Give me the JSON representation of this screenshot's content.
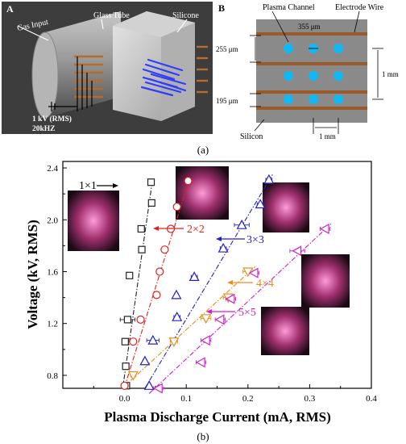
{
  "panel_a": {
    "letter": "A",
    "label_gas_input": "Gas Input",
    "label_glass_tube": "Glass Tube",
    "label_silicone": "Silicone",
    "label_voltage": "1 kV (RMS)",
    "label_freq": "20kHZ"
  },
  "panel_b": {
    "letter": "B",
    "label_plasma_channel": "Plasma Channel",
    "label_electrode_wire": "Electrode Wire",
    "dim_355": "355 μm",
    "dim_255": "255 μm",
    "dim_195": "195 μm",
    "dim_1mm_right": "1 mm",
    "dim_1mm_bottom": "1 mm",
    "label_silicon": "Silicon"
  },
  "caption_a": "(a)",
  "caption_b": "(b)",
  "colors": {
    "s1x1": "#222222",
    "s2x2": "#e0201c",
    "s3x3": "#2222c8",
    "s4x4": "#f08a1a",
    "s5x5": "#d21cd2"
  },
  "chart_data": {
    "type": "scatter",
    "xlabel": "Plasma Discharge Current (mA, RMS)",
    "ylabel": "Voltage (kV, RMS)",
    "xlim": [
      -0.1,
      0.4
    ],
    "ylim": [
      0.7,
      2.45
    ],
    "xticks": [
      "0.0",
      "0.1",
      "0.2",
      "0.3",
      "0.4"
    ],
    "yticks": [
      "0.8",
      "1.2",
      "1.6",
      "2.0",
      "2.4"
    ],
    "xtick_values": [
      0.0,
      0.1,
      0.2,
      0.3,
      0.4
    ],
    "ytick_values": [
      0.8,
      1.2,
      1.6,
      2.0,
      2.4
    ],
    "series": [
      {
        "name": "1×1",
        "marker": "square",
        "points": [
          [
            0.003,
            0.72
          ],
          [
            0.002,
            0.87
          ],
          [
            0.001,
            1.06
          ],
          [
            0.005,
            1.23
          ],
          [
            0.008,
            1.57
          ],
          [
            0.028,
            1.77
          ],
          [
            0.027,
            1.93
          ],
          [
            0.044,
            2.13
          ],
          [
            0.043,
            2.29
          ]
        ],
        "xerr": [
          0.003,
          0.003,
          0.004,
          0.012,
          0.004,
          0.004,
          0.004,
          0.003,
          0.003
        ],
        "fit": [
          [
            -0.003,
            0.7
          ],
          [
            0.046,
            2.33
          ]
        ]
      },
      {
        "name": "2×2",
        "marker": "circle",
        "points": [
          [
            0.0,
            0.72
          ],
          [
            0.014,
            1.06
          ],
          [
            0.026,
            1.23
          ],
          [
            0.052,
            1.42
          ],
          [
            0.057,
            1.6
          ],
          [
            0.065,
            1.77
          ],
          [
            0.075,
            1.93
          ],
          [
            0.085,
            2.1
          ],
          [
            0.103,
            2.3
          ]
        ],
        "xerr": [
          0.002,
          0.003,
          0.003,
          0.003,
          0.003,
          0.003,
          0.003,
          0.003,
          0.003
        ],
        "fit": [
          [
            0.0,
            0.71
          ],
          [
            0.106,
            2.33
          ]
        ]
      },
      {
        "name": "3×3",
        "marker": "triangle-up",
        "points": [
          [
            0.04,
            0.72
          ],
          [
            0.033,
            0.91
          ],
          [
            0.046,
            1.07
          ],
          [
            0.085,
            1.25
          ],
          [
            0.084,
            1.42
          ],
          [
            0.113,
            1.56
          ],
          [
            0.16,
            1.78
          ],
          [
            0.19,
            1.96
          ],
          [
            0.22,
            2.12
          ],
          [
            0.234,
            2.31
          ]
        ],
        "xerr": [
          0.003,
          0.003,
          0.01,
          0.005,
          0.003,
          0.005,
          0.005,
          0.012,
          0.005,
          0.005
        ],
        "fit": [
          [
            0.033,
            0.7
          ],
          [
            0.24,
            2.35
          ]
        ]
      },
      {
        "name": "4×4",
        "marker": "triangle-down",
        "points": [
          [
            0.014,
            0.8
          ],
          [
            0.08,
            1.06
          ],
          [
            0.132,
            1.24
          ],
          [
            0.168,
            1.4
          ],
          [
            0.2,
            1.6
          ]
        ],
        "xerr": [
          0.004,
          0.006,
          0.008,
          0.008,
          0.008
        ],
        "fit": [
          [
            0.01,
            0.76
          ],
          [
            0.212,
            1.64
          ]
        ]
      },
      {
        "name": "5×5",
        "marker": "triangle-left",
        "points": [
          [
            0.055,
            0.7
          ],
          [
            0.124,
            0.9
          ],
          [
            0.132,
            1.07
          ],
          [
            0.155,
            1.23
          ],
          [
            0.172,
            1.39
          ],
          [
            0.21,
            1.59
          ],
          [
            0.28,
            1.76
          ],
          [
            0.325,
            1.93
          ]
        ],
        "xerr": [
          0.008,
          0.008,
          0.008,
          0.008,
          0.008,
          0.008,
          0.012,
          0.008
        ],
        "fit": [
          [
            0.04,
            0.66
          ],
          [
            0.335,
            1.97
          ]
        ]
      }
    ],
    "annotations": [
      "1×1",
      "2×2",
      "3×3",
      "4×4",
      "5×5"
    ],
    "grid": false,
    "legend": "none"
  }
}
